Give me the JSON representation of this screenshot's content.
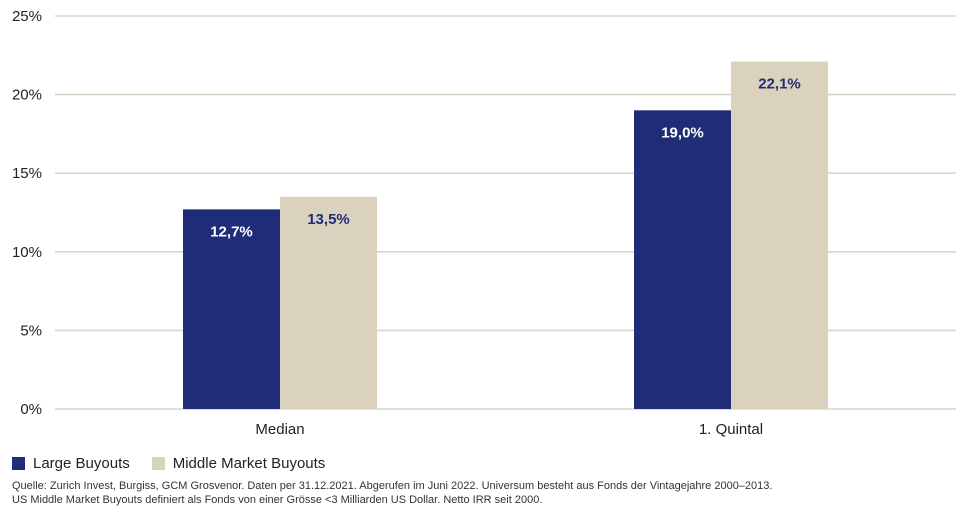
{
  "chart_data": {
    "type": "bar",
    "categories": [
      "Median",
      "1. Quintal"
    ],
    "series": [
      {
        "name": "Large Buyouts",
        "values": [
          12.7,
          19.0
        ],
        "labels": [
          "12,7%",
          "19,0%"
        ],
        "color": "#1f2d78",
        "label_color": "#ffffff"
      },
      {
        "name": "Middle Market Buyouts",
        "values": [
          13.5,
          22.1
        ],
        "labels": [
          "13,5%",
          "22,1%"
        ],
        "color": "#dbd2be",
        "label_color": "#1f2d78"
      }
    ],
    "ylim": [
      0,
      25
    ],
    "yticks": [
      0,
      5,
      10,
      15,
      20,
      25
    ],
    "ytick_labels": [
      "0%",
      "5%",
      "10%",
      "15%",
      "20%",
      "25%"
    ],
    "grid": true,
    "gridline_color": "#dcd6c6",
    "legend_position": "bottom-left",
    "title": "",
    "xlabel": "",
    "ylabel": ""
  },
  "footnote": {
    "line1": "Quelle: Zurich Invest, Burgiss, GCM Grosvenor. Daten per 31.12.2021. Abgerufen im Juni 2022. Universum besteht aus Fonds der Vintagejahre 2000–2013.",
    "line2": "US Middle Market Buyouts definiert als Fonds von einer Grösse <3 Milliarden US Dollar. Netto IRR seit 2000."
  }
}
